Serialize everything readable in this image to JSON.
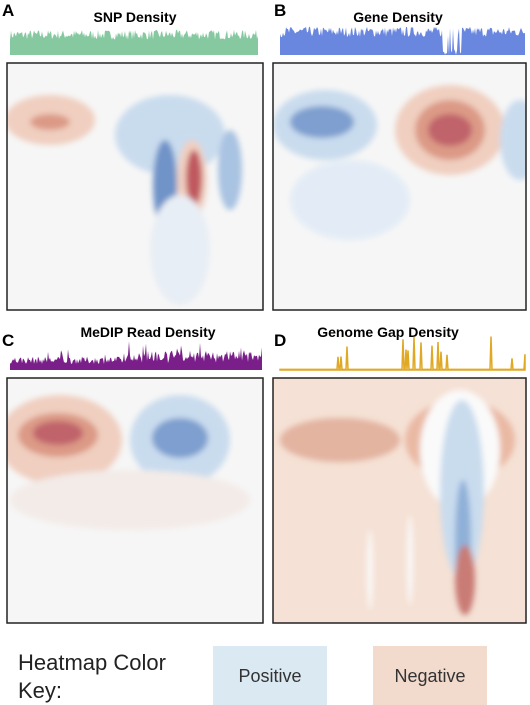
{
  "panels": [
    {
      "label": "A",
      "title": "SNP Density"
    },
    {
      "label": "B",
      "title": "Gene Density"
    },
    {
      "label": "C",
      "title": "MeDIP Read Density"
    },
    {
      "label": "D",
      "title": "Genome Gap Density"
    }
  ],
  "legend": {
    "title_line1": "Heatmap Color",
    "title_line2": "Key:",
    "positive": "Positive",
    "negative": "Negative"
  }
}
